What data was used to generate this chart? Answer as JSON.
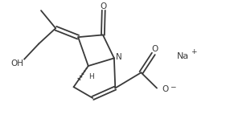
{
  "bg_color": "#ffffff",
  "line_color": "#3a3a3a",
  "lw": 1.3,
  "figsize": [
    2.81,
    1.53
  ],
  "dpi": 100,
  "xlim": [
    0,
    10
  ],
  "ylim": [
    0,
    5.5
  ]
}
